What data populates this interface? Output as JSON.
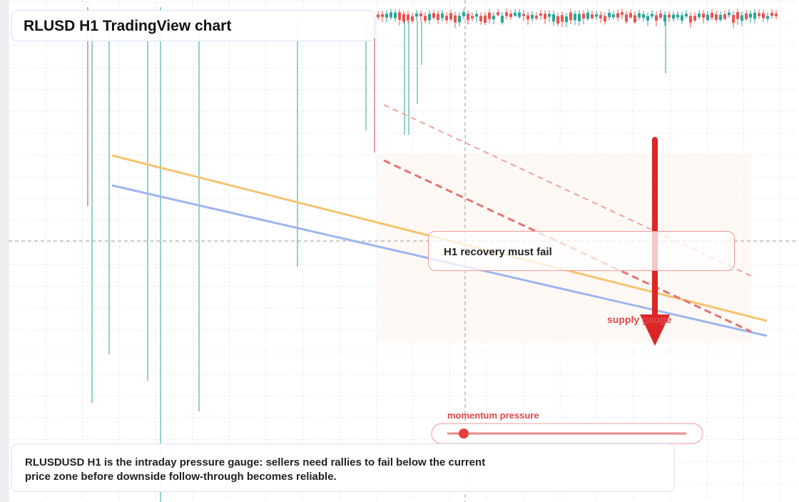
{
  "header": {
    "title": "RLUSD H1 TradingView chart"
  },
  "annotations": {
    "callout": "H1 recovery must fail",
    "zone_label": "supply gauge",
    "gauge_label": "momentum pressure"
  },
  "footer": {
    "text": "RLUSDUSD H1 is the intraday pressure gauge: sellers need rallies to fail below the current price zone before downside follow-through becomes reliable."
  }
}
